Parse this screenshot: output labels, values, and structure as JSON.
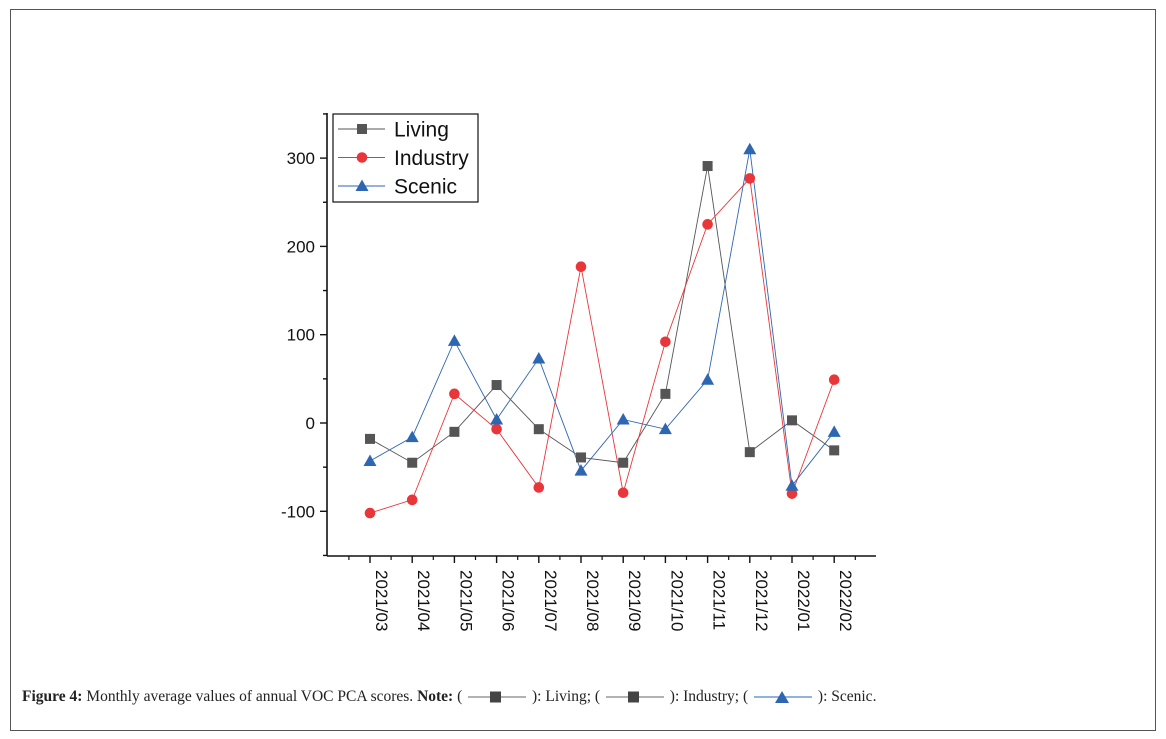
{
  "chart_data": {
    "type": "line",
    "categories": [
      "2021/03",
      "2021/04",
      "2021/05",
      "2021/06",
      "2021/07",
      "2021/08",
      "2021/09",
      "2021/10",
      "2021/11",
      "2021/12",
      "2022/01",
      "2022/02"
    ],
    "series": [
      {
        "name": "Living",
        "color": "#555555",
        "marker": "square",
        "values": [
          -18,
          -45,
          -10,
          43,
          -7,
          -39,
          -45,
          33,
          291,
          -33,
          3,
          -31
        ]
      },
      {
        "name": "Industry",
        "color": "#e8363b",
        "marker": "circle",
        "values": [
          -102,
          -87,
          33,
          -7,
          -73,
          177,
          -79,
          92,
          225,
          277,
          -80,
          49
        ]
      },
      {
        "name": "Scenic",
        "color": "#2e66b1",
        "marker": "triangle",
        "values": [
          -43,
          -16,
          93,
          4,
          73,
          -54,
          4,
          -7,
          49,
          310,
          -71,
          -10
        ]
      }
    ],
    "yticks": [
      -100,
      0,
      100,
      200,
      300
    ],
    "ylim": [
      -150,
      350
    ],
    "xlabel": "",
    "ylabel": "",
    "legend_position": "top-left"
  },
  "caption": {
    "label": "Figure 4:",
    "text": "Monthly average values of annual VOC PCA scores.",
    "note_label": "Note:",
    "open1": "(",
    "close1": "): Living; (",
    "close2": "): Industry; (",
    "close3": "): Scenic."
  }
}
